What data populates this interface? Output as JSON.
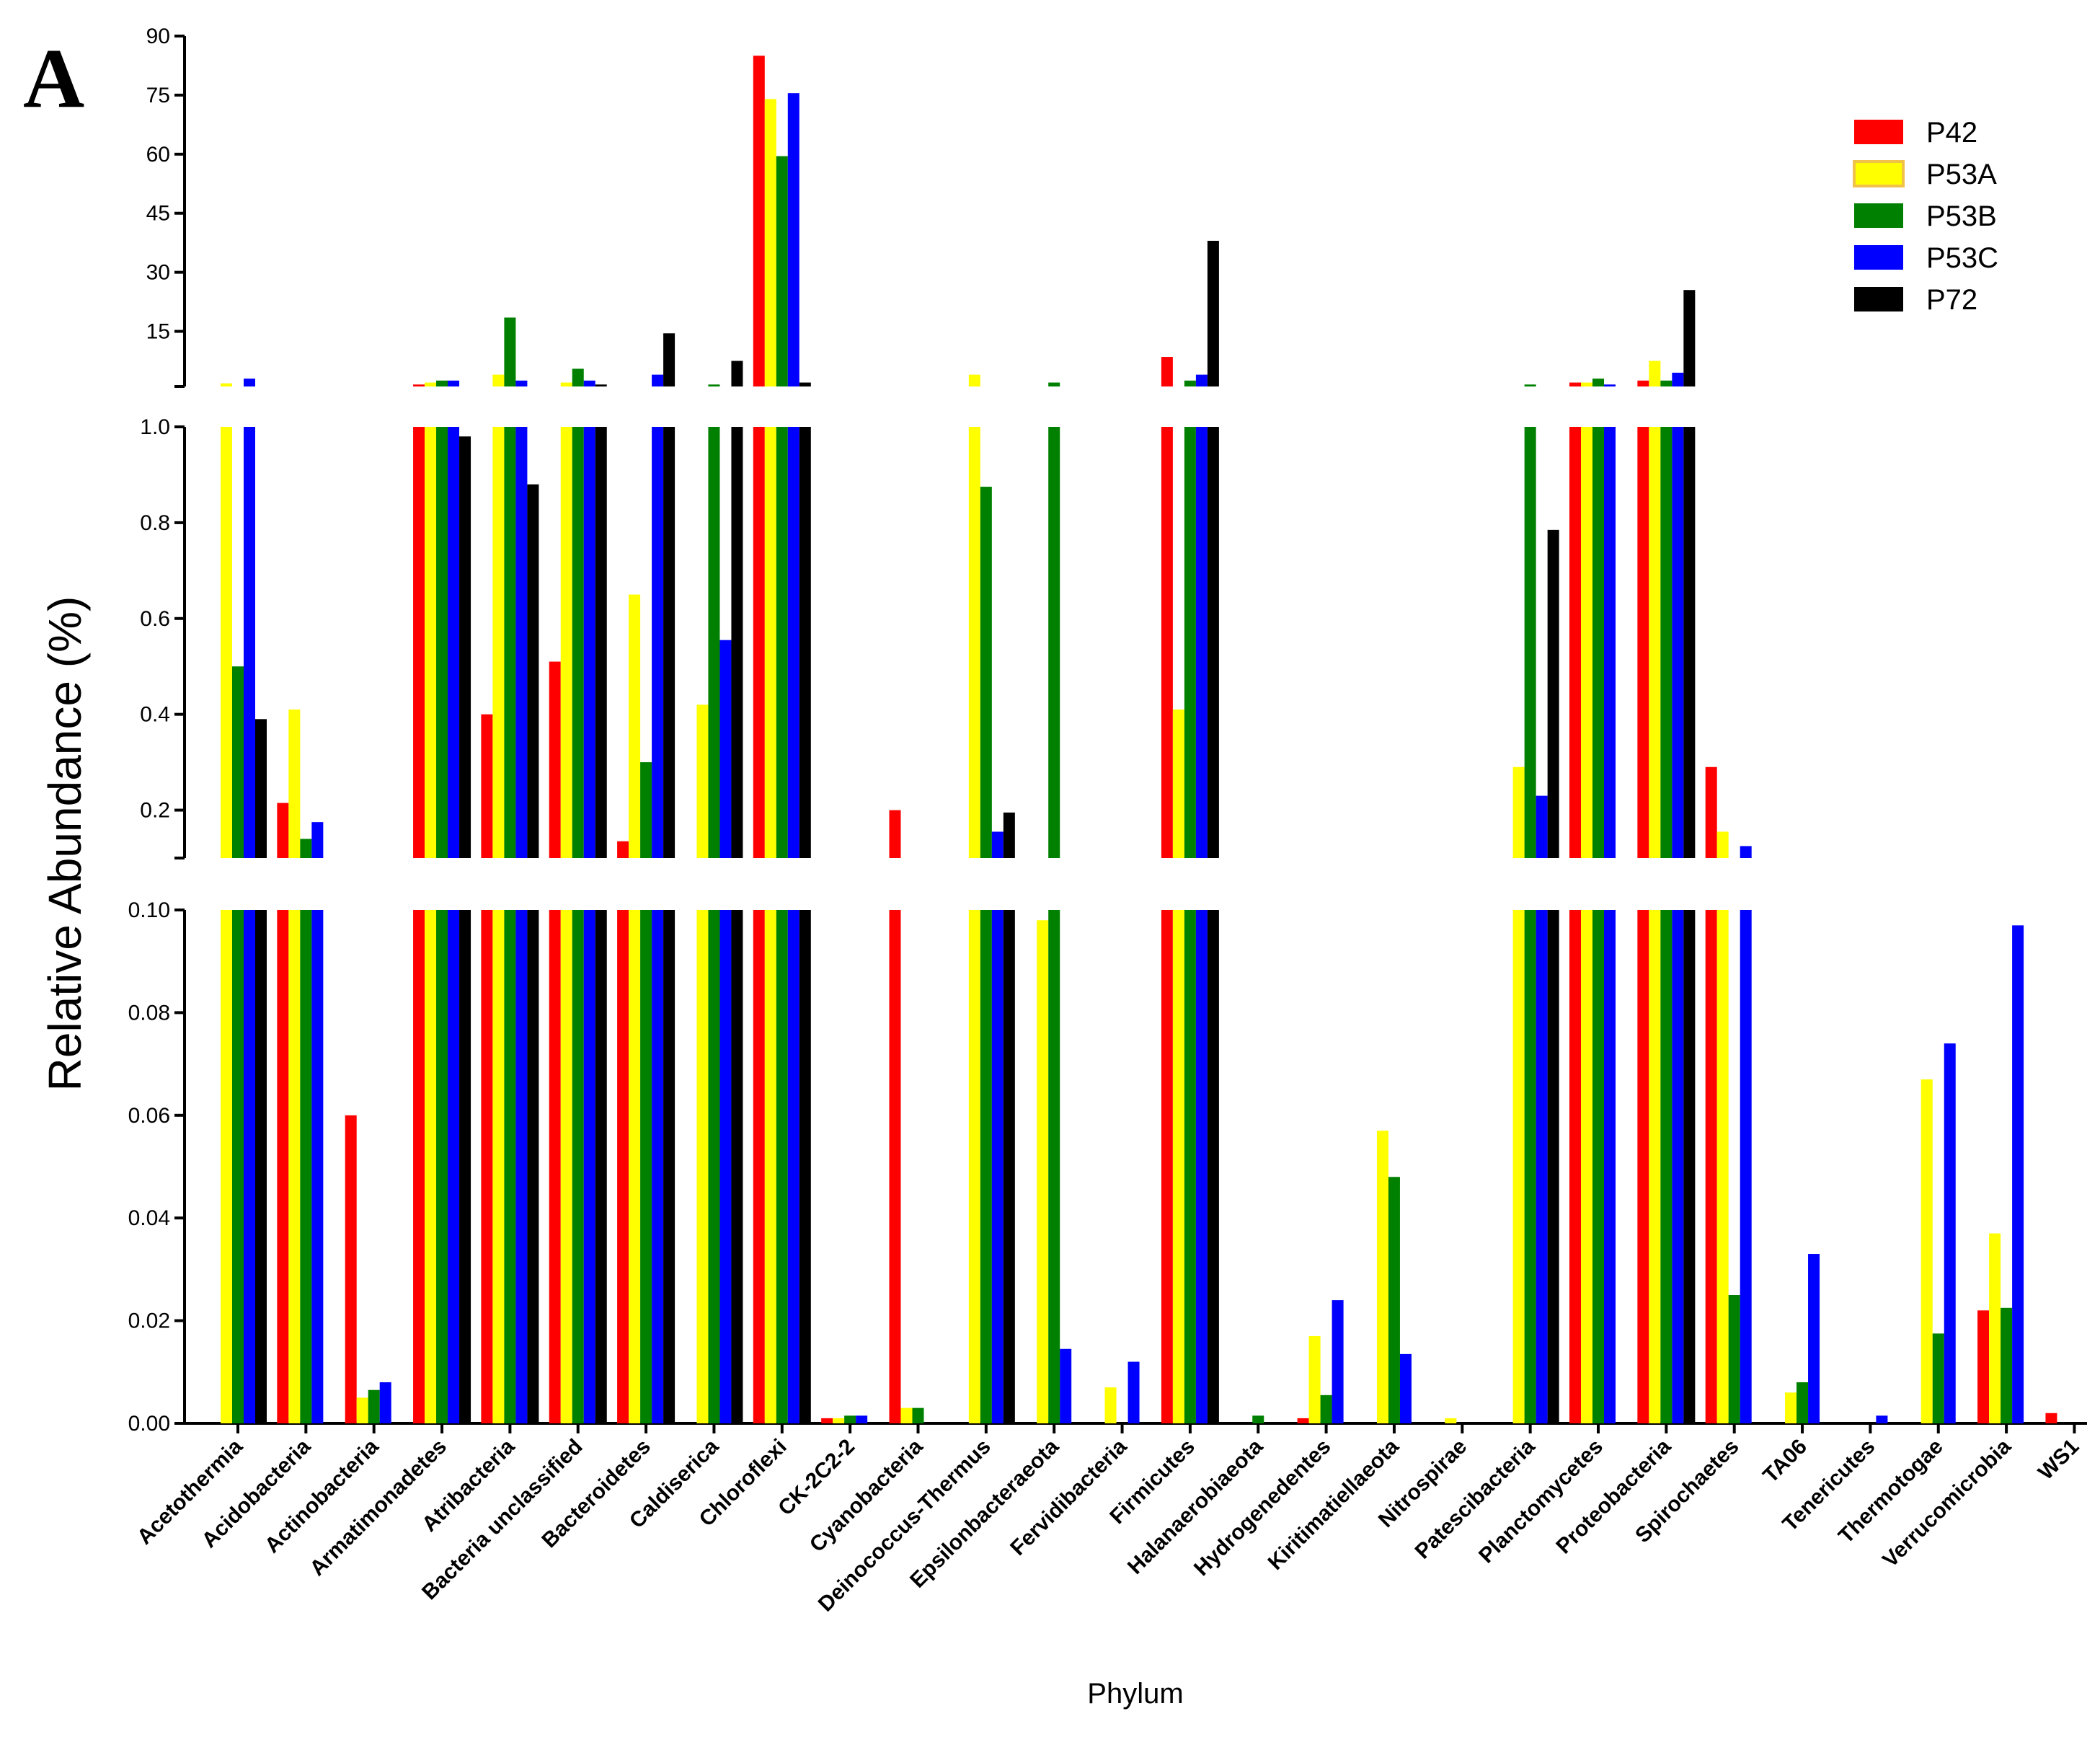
{
  "panel_label": "A",
  "chart_data": {
    "type": "bar",
    "title": "",
    "xlabel": "Phylum",
    "ylabel": "Relative Abundance (%)",
    "axis_breaks": [
      {
        "name": "lower",
        "ylim": [
          0,
          0.1
        ],
        "ticks": [
          "0.00",
          "0.02",
          "0.04",
          "0.06",
          "0.08",
          "0.10"
        ]
      },
      {
        "name": "middle",
        "ylim": [
          0.1,
          1.0
        ],
        "ticks": [
          "0.2",
          "0.4",
          "0.6",
          "0.8",
          "1.0"
        ]
      },
      {
        "name": "upper",
        "ylim": [
          1.0,
          90
        ],
        "ticks": [
          "15",
          "30",
          "45",
          "60",
          "75",
          "90"
        ]
      }
    ],
    "legend_position": "top-right",
    "categories": [
      "Acetothermia",
      "Acidobacteria",
      "Actinobacteria",
      "Armatimonadetes",
      "Atribacteria",
      "Bacteria unclassified",
      "Bacteroidetes",
      "Caldiserica",
      "Chloroflexi",
      "CK-2C2-2",
      "Cyanobacteria",
      "Deinococcus-Thermus",
      "Epsilonbacteraeota",
      "Fervidibacteria",
      "Firmicutes",
      "Halanaerobiaeota",
      "Hydrogenedentes",
      "Kiritimatiellaeota",
      "Nitrospirae",
      "Patescibacteria",
      "Planctomycetes",
      "Proteobacteria",
      "Spirochaetes",
      "TA06",
      "Tenericutes",
      "Thermotogae",
      "Verrucomicrobia",
      "WS1"
    ],
    "series": [
      {
        "name": "P42",
        "color": "#ff0000",
        "values": [
          0,
          0.215,
          0.06,
          1.5,
          0.4,
          0.51,
          0.135,
          0,
          85,
          0.001,
          0.2,
          0,
          0,
          0,
          8.5,
          0,
          0.001,
          0,
          0,
          0,
          2.0,
          2.5,
          0.29,
          0,
          0,
          0,
          0.022,
          0.002
        ]
      },
      {
        "name": "P53A",
        "color": "#ffff00",
        "values": [
          1.8,
          0.41,
          0.005,
          2.0,
          4.0,
          2.0,
          0.65,
          0.42,
          74,
          0.001,
          0.003,
          4.0,
          0.098,
          0.007,
          0.41,
          0,
          0.017,
          0.057,
          0.001,
          0.29,
          2.0,
          7.5,
          0.155,
          0.006,
          0,
          0.067,
          0.037,
          0
        ]
      },
      {
        "name": "P53B",
        "color": "#008000",
        "values": [
          0.5,
          0.14,
          0.0065,
          2.5,
          18.5,
          5.5,
          0.3,
          1.5,
          59.5,
          0.0015,
          0.003,
          0.875,
          2.0,
          0,
          2.5,
          0.0015,
          0.0055,
          0.048,
          0,
          1.5,
          3.0,
          2.5,
          0.025,
          0.008,
          0,
          0.0175,
          0.0225,
          0
        ]
      },
      {
        "name": "P53C",
        "color": "#0000ff",
        "values": [
          3.0,
          0.175,
          0.008,
          2.5,
          2.5,
          2.5,
          4.0,
          0.555,
          75.5,
          0.0015,
          0,
          0.155,
          0.0145,
          0.012,
          4.0,
          0,
          0.024,
          0.0135,
          0,
          0.23,
          1.5,
          4.5,
          0.125,
          0.033,
          0.0015,
          0.074,
          0.097,
          0
        ]
      },
      {
        "name": "P72",
        "color": "#000000",
        "values": [
          0.39,
          0,
          0,
          0.98,
          0.88,
          1.5,
          14.5,
          7.5,
          2.0,
          0,
          0,
          0.195,
          0,
          0,
          38,
          0,
          0,
          0,
          0,
          0.785,
          0,
          25.5,
          0,
          0,
          0,
          0,
          0,
          0
        ]
      }
    ]
  }
}
